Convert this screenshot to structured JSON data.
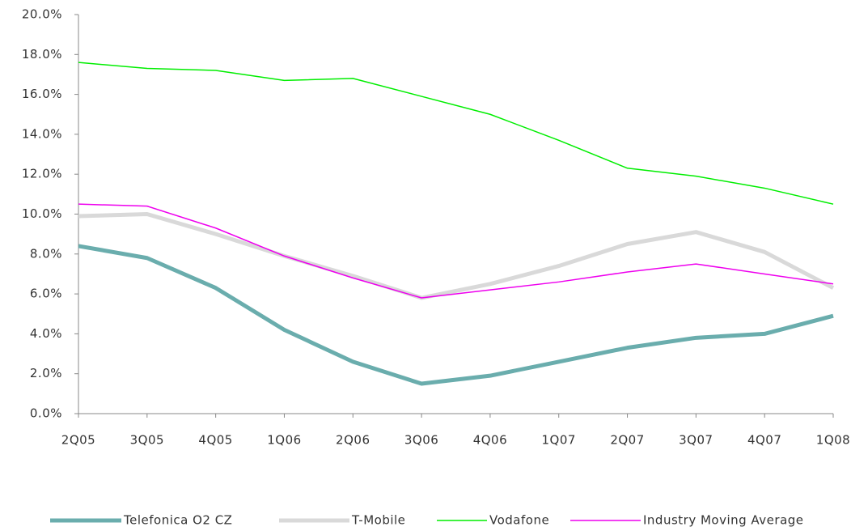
{
  "chart_data": {
    "type": "line",
    "categories": [
      "2Q05",
      "3Q05",
      "4Q05",
      "1Q06",
      "2Q06",
      "3Q06",
      "4Q06",
      "1Q07",
      "2Q07",
      "3Q07",
      "4Q07",
      "1Q08"
    ],
    "series": [
      {
        "name": "Telefonica O2 CZ",
        "color": "#6aadad",
        "values": [
          8.4,
          7.8,
          6.3,
          4.2,
          2.6,
          1.5,
          1.9,
          2.6,
          3.3,
          3.8,
          4.0,
          4.9
        ]
      },
      {
        "name": "T-Mobile",
        "color": "#d9d9d9",
        "values": [
          9.9,
          10.0,
          9.0,
          7.9,
          6.9,
          5.8,
          6.5,
          7.4,
          8.5,
          9.1,
          8.1,
          6.3
        ]
      },
      {
        "name": "Vodafone",
        "color": "#00ee00",
        "values": [
          17.6,
          17.3,
          17.2,
          16.7,
          16.8,
          15.9,
          15.0,
          13.7,
          12.3,
          11.9,
          11.3,
          10.5
        ]
      },
      {
        "name": "Industry Moving Average",
        "color": "#ee00ee",
        "values": [
          10.5,
          10.4,
          9.3,
          7.9,
          6.8,
          5.8,
          6.2,
          6.6,
          7.1,
          7.5,
          7.0,
          6.5
        ]
      }
    ],
    "ylim": [
      0,
      20
    ],
    "yticks": [
      {
        "value": 0,
        "label": "0.0%"
      },
      {
        "value": 2,
        "label": "2.0%"
      },
      {
        "value": 4,
        "label": "4.0%"
      },
      {
        "value": 6,
        "label": "6.0%"
      },
      {
        "value": 8,
        "label": "8.0%"
      },
      {
        "value": 10,
        "label": "10.0%"
      },
      {
        "value": 12,
        "label": "12.0%"
      },
      {
        "value": 14,
        "label": "14.0%"
      },
      {
        "value": 16,
        "label": "16.0%"
      },
      {
        "value": 18,
        "label": "18.0%"
      },
      {
        "value": 20,
        "label": "20.0%"
      }
    ],
    "grid": false,
    "legend": "bottom"
  }
}
